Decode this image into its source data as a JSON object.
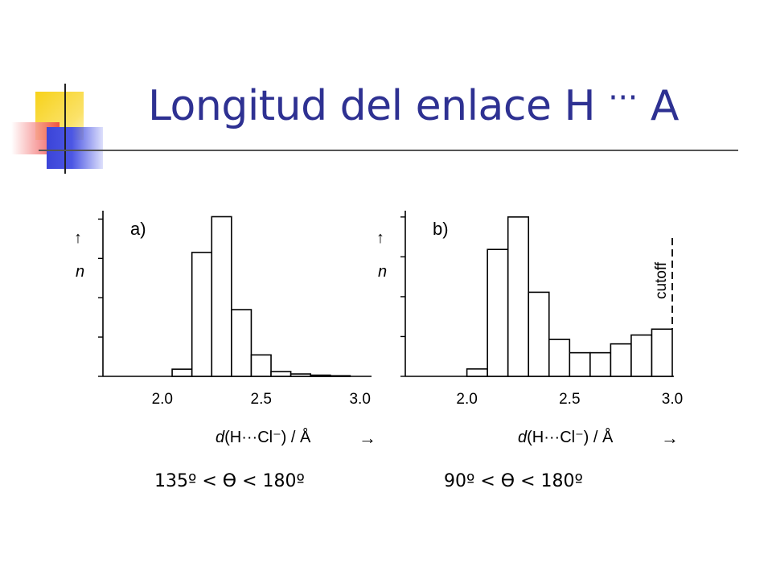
{
  "slide": {
    "title": "Longitud del enlace H",
    "title_dots": "···",
    "title_tail": "A"
  },
  "chart_data": [
    {
      "type": "bar",
      "panel_label": "a)",
      "bins": [
        {
          "x0": 1.7,
          "x1": 2.05,
          "value": 0
        },
        {
          "x0": 2.05,
          "x1": 2.15,
          "value": 0.6
        },
        {
          "x0": 2.15,
          "x1": 2.25,
          "value": 10.4
        },
        {
          "x0": 2.25,
          "x1": 2.35,
          "value": 13.4
        },
        {
          "x0": 2.35,
          "x1": 2.45,
          "value": 5.6
        },
        {
          "x0": 2.45,
          "x1": 2.55,
          "value": 1.8
        },
        {
          "x0": 2.55,
          "x1": 2.65,
          "value": 0.4
        },
        {
          "x0": 2.65,
          "x1": 2.75,
          "value": 0.2
        },
        {
          "x0": 2.75,
          "x1": 2.85,
          "value": 0.1
        },
        {
          "x0": 2.85,
          "x1": 2.95,
          "value": 0.05
        }
      ],
      "xticks": [
        "2.0",
        "2.5",
        "3.0"
      ],
      "xtick_values": [
        2.0,
        2.5,
        3.0
      ],
      "yticks": [
        0,
        3.3,
        6.6,
        9.9,
        13.2
      ],
      "xlim": [
        1.7,
        3.05
      ],
      "ylim": [
        0,
        13.5
      ],
      "ylabel_arrow": "↑",
      "ylabel": "n",
      "xlabel_prefix": "d",
      "xlabel_main": "(H···Cl⁻) / Å",
      "xlabel_arrow": "→",
      "cutoff": null,
      "caption": "135º < Ө < 180º"
    },
    {
      "type": "bar",
      "panel_label": "b)",
      "bins": [
        {
          "x0": 1.7,
          "x1": 2.0,
          "value": 0
        },
        {
          "x0": 2.0,
          "x1": 2.1,
          "value": 0.5
        },
        {
          "x0": 2.1,
          "x1": 2.2,
          "value": 8.6
        },
        {
          "x0": 2.2,
          "x1": 2.3,
          "value": 10.8
        },
        {
          "x0": 2.3,
          "x1": 2.4,
          "value": 5.7
        },
        {
          "x0": 2.4,
          "x1": 2.5,
          "value": 2.5
        },
        {
          "x0": 2.5,
          "x1": 2.6,
          "value": 1.6
        },
        {
          "x0": 2.6,
          "x1": 2.7,
          "value": 1.6
        },
        {
          "x0": 2.7,
          "x1": 2.8,
          "value": 2.2
        },
        {
          "x0": 2.8,
          "x1": 2.9,
          "value": 2.8
        },
        {
          "x0": 2.9,
          "x1": 3.0,
          "value": 3.2
        }
      ],
      "xticks": [
        "2.0",
        "2.5",
        "3.0"
      ],
      "xtick_values": [
        2.0,
        2.5,
        3.0
      ],
      "yticks": [
        0,
        2.7,
        5.4,
        8.1,
        10.8
      ],
      "xlim": [
        1.7,
        3.0
      ],
      "ylim": [
        0,
        10.9
      ],
      "ylabel_arrow": "↑",
      "ylabel": "n",
      "xlabel_prefix": "d",
      "xlabel_main": "(H···Cl⁻) / Å",
      "xlabel_arrow": "→",
      "cutoff": {
        "x": 3.0,
        "label": "cutoff"
      },
      "caption": "90º < Ө < 180º"
    }
  ]
}
